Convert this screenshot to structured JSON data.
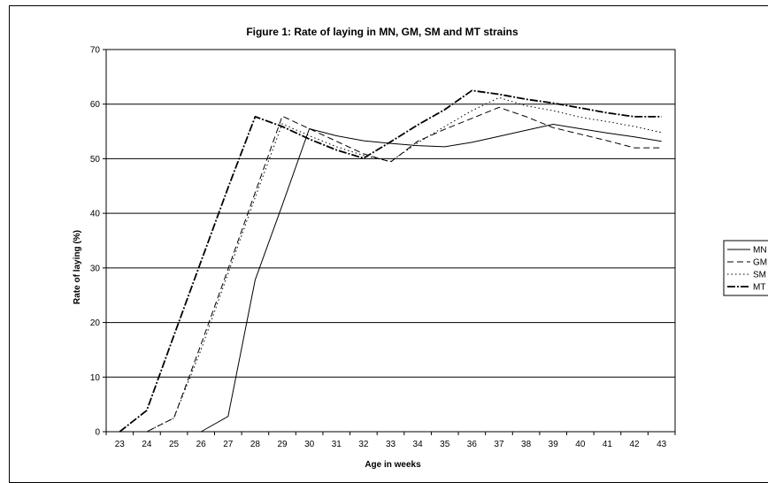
{
  "chart_data": {
    "type": "line",
    "title": "Figure 1: Rate of laying in MN, GM, SM and MT strains",
    "xlabel": "Age in weeks",
    "ylabel": "Rate of laying (%)",
    "x": [
      23,
      24,
      25,
      26,
      27,
      28,
      29,
      30,
      31,
      32,
      33,
      34,
      35,
      36,
      37,
      38,
      39,
      40,
      41,
      42,
      43
    ],
    "ylim": [
      0,
      70
    ],
    "yticks": [
      0,
      10,
      20,
      30,
      40,
      50,
      60,
      70
    ],
    "grid": true,
    "legend_position": "right",
    "series": [
      {
        "name": "MN",
        "dash": "",
        "values": [
          0,
          0,
          0,
          0,
          2.8,
          27.8,
          41.5,
          55.5,
          54.2,
          53.3,
          52.8,
          52.4,
          52.2,
          53.0,
          54.1,
          55.2,
          56.3,
          55.5,
          54.7,
          54.0,
          53.2
        ]
      },
      {
        "name": "GM",
        "dash": "7 4",
        "values": [
          0,
          0,
          2.5,
          16.0,
          29.8,
          43.8,
          57.8,
          55.5,
          53.2,
          50.9,
          49.4,
          53.2,
          55.4,
          57.4,
          59.4,
          57.7,
          55.7,
          54.5,
          53.3,
          52.0,
          52.0
        ]
      },
      {
        "name": "SM",
        "dash": "1.5 3",
        "values": [
          0,
          0,
          2.5,
          15.0,
          29.0,
          42.9,
          56.4,
          54.2,
          52.2,
          50.6,
          49.5,
          52.9,
          55.9,
          58.8,
          61.2,
          59.7,
          58.8,
          57.6,
          56.8,
          55.9,
          54.8
        ]
      },
      {
        "name": "MT",
        "dash": "9 2 2 2",
        "values": [
          0,
          3.9,
          17.6,
          31.2,
          44.7,
          57.7,
          55.9,
          53.6,
          51.6,
          50.1,
          53.1,
          56.2,
          59.0,
          62.5,
          61.8,
          60.9,
          60.2,
          59.3,
          58.4,
          57.7,
          57.7
        ]
      }
    ]
  }
}
